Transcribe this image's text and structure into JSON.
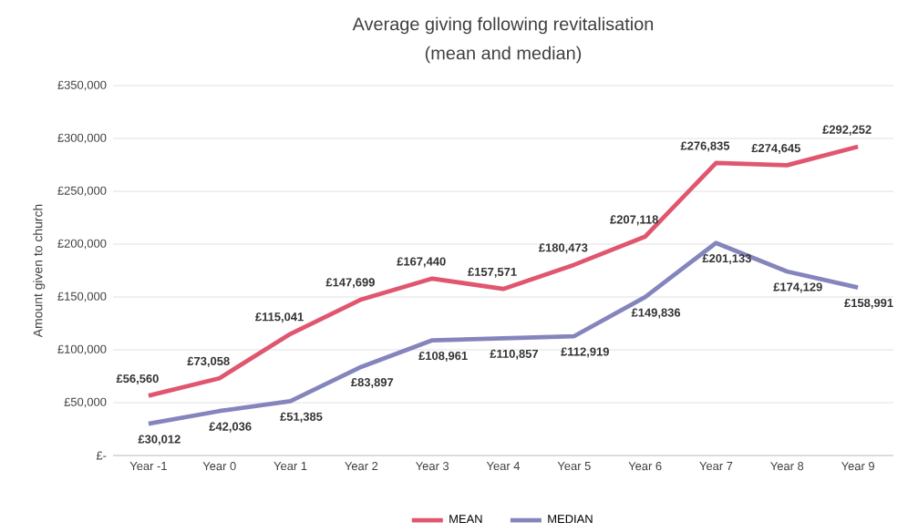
{
  "chart_data": {
    "type": "line",
    "title": "Average giving following revitalisation",
    "subtitle": "(mean and median)",
    "ylabel": "Amount given to church",
    "categories": [
      "Year -1",
      "Year 0",
      "Year 1",
      "Year 2",
      "Year 3",
      "Year 4",
      "Year 5",
      "Year 6",
      "Year 7",
      "Year 8",
      "Year 9"
    ],
    "series": [
      {
        "name": "MEAN",
        "color": "#e0566e",
        "values": [
          56560,
          73058,
          115041,
          147699,
          167440,
          157571,
          180473,
          207118,
          276835,
          274645,
          292252
        ],
        "value_labels": [
          "£56,560",
          "£73,058",
          "£115,041",
          "£147,699",
          "£167,440",
          "£157,571",
          "£180,473",
          "£207,118",
          "£276,835",
          "£274,645",
          "£292,252"
        ]
      },
      {
        "name": "MEDIAN",
        "color": "#8585bd",
        "values": [
          30012,
          42036,
          51385,
          83897,
          108961,
          110857,
          112919,
          149836,
          201133,
          174129,
          158991
        ],
        "value_labels": [
          "£30,012",
          "£42,036",
          "£51,385",
          "£83,897",
          "£108,961",
          "£110,857",
          "£112,919",
          "£149,836",
          "£201,133",
          "£174,129",
          "£158,991"
        ]
      }
    ],
    "ylim": [
      0,
      350000
    ],
    "yticks": [
      {
        "value": 0,
        "label": "£-"
      },
      {
        "value": 50000,
        "label": "£50,000"
      },
      {
        "value": 100000,
        "label": "£100,000"
      },
      {
        "value": 150000,
        "label": "£150,000"
      },
      {
        "value": 200000,
        "label": "£200,000"
      },
      {
        "value": 250000,
        "label": "£250,000"
      },
      {
        "value": 300000,
        "label": "£300,000"
      },
      {
        "value": 350000,
        "label": "£350,000"
      }
    ],
    "grid": "y",
    "legend": "bottom",
    "marker": "none",
    "line_style": "solid"
  }
}
